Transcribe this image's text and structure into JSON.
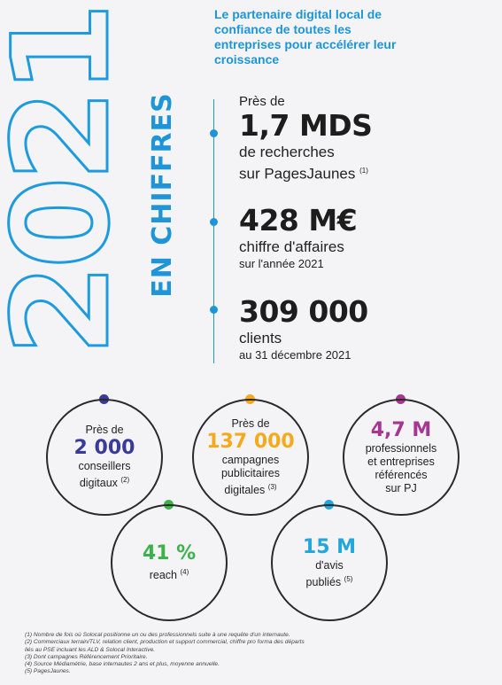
{
  "header": {
    "year": "2021",
    "subtitle": "EN CHIFFRES",
    "tagline": "Le partenaire digital local de confiance de toutes les entreprises pour accélérer leur croissance"
  },
  "timeline": [
    {
      "pre": "Près de",
      "value": "1,7 MDS",
      "line1": "de recherches",
      "line2": "sur PagesJaunes",
      "note": "(1)"
    },
    {
      "pre": "",
      "value": "428 M€",
      "line1": "chiffre d'affaires",
      "line2": "sur l'année 2021",
      "note": ""
    },
    {
      "pre": "",
      "value": "309 000",
      "line1": "clients",
      "line2": "au 31 décembre 2021",
      "note": ""
    }
  ],
  "circles": [
    {
      "pre": "Près de",
      "value": "2 000",
      "l1": "conseillers",
      "l2": "digitaux",
      "note": "(2)",
      "l3": "",
      "color": "#3a3a98"
    },
    {
      "pre": "Près de",
      "value": "137 000",
      "l1": "campagnes",
      "l2": "publicitaires",
      "l3": "digitales",
      "note": "(3)",
      "color": "#f6a91c"
    },
    {
      "pre": "",
      "value": "4,7 M",
      "l1": "professionnels",
      "l2": "et entreprises",
      "l3": "référencés",
      "l4": "sur PJ",
      "note": "",
      "color": "#a6368f"
    },
    {
      "pre": "",
      "value": "41 %",
      "l1": "reach",
      "note": "(4)",
      "color": "#3db24c"
    },
    {
      "pre": "",
      "value": "15 M",
      "l1": "d'avis",
      "l2": "publiés",
      "note": "(5)",
      "color": "#23a6d9"
    }
  ],
  "notes": [
    "(1)   Nombre de fois où Solocal positionne un ou des professionnels suite à une requête d'un internaute.",
    "(2)   Commerciaux terrain/TLV, relation client, production et support commercial, chiffre pro forma des départs",
    "        liés au PSE incluant les ALD & Solocal Interactive.",
    "(3)   Dont campagnes Référencement Prioritaire.",
    "(4)   Source Médiamétrie, base internautes 2 ans et plus, moyenne annuelle.",
    "(5)   PagesJaunes."
  ]
}
